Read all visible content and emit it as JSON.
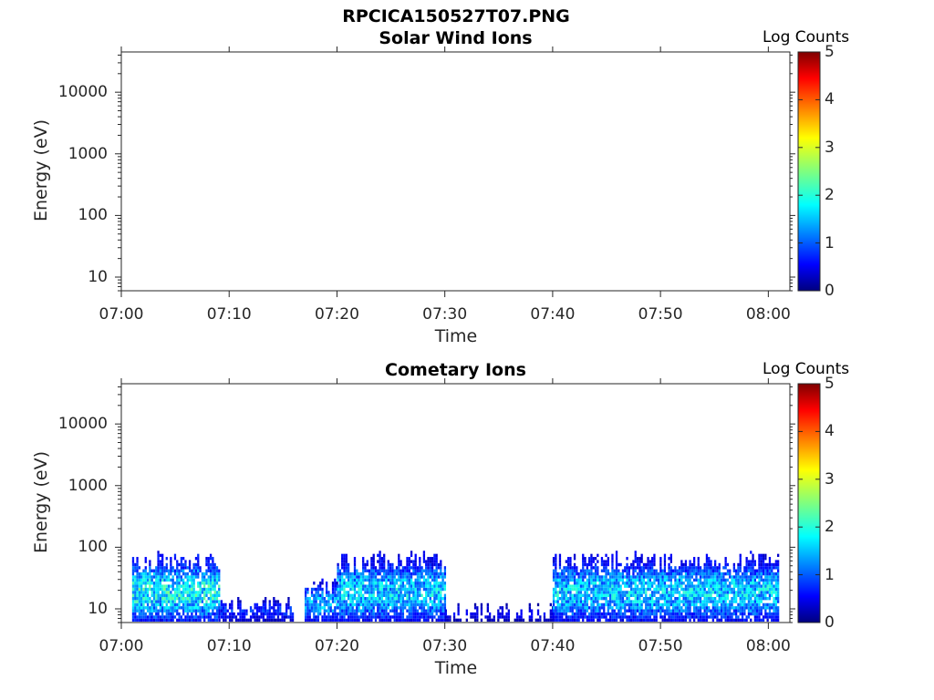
{
  "figure": {
    "title": "RPCICA150527T07.PNG"
  },
  "chart_data": [
    {
      "type": "heatmap",
      "title": "Solar Wind Ions",
      "xlabel": "Time",
      "ylabel": "Energy (eV)",
      "x_ticks": [
        "07:00",
        "07:10",
        "07:20",
        "07:30",
        "07:40",
        "07:50",
        "08:00"
      ],
      "xlim": [
        "07:00",
        "08:02"
      ],
      "y_scale": "log",
      "y_ticks": [
        "10",
        "100",
        "1000",
        "10000"
      ],
      "ylim": [
        6,
        45000
      ],
      "colorbar": {
        "label": "Log Counts",
        "range": [
          0,
          5
        ],
        "ticks": [
          "0",
          "1",
          "2",
          "3",
          "4",
          "5"
        ],
        "colormap": "jet"
      },
      "grid": false,
      "cells": []
    },
    {
      "type": "heatmap",
      "title": "Cometary Ions",
      "xlabel": "Time",
      "ylabel": "Energy (eV)",
      "x_ticks": [
        "07:00",
        "07:10",
        "07:20",
        "07:30",
        "07:40",
        "07:50",
        "08:00"
      ],
      "xlim": [
        "07:00",
        "08:02"
      ],
      "y_scale": "log",
      "y_ticks": [
        "10",
        "100",
        "1000",
        "10000"
      ],
      "ylim": [
        6,
        45000
      ],
      "colorbar": {
        "label": "Log Counts",
        "range": [
          0,
          5
        ],
        "ticks": [
          "0",
          "1",
          "2",
          "3",
          "4",
          "5"
        ],
        "colormap": "jet"
      },
      "grid": false,
      "activity_intervals": [
        {
          "start": "07:01",
          "end": "07:09",
          "emax_ev": 80,
          "peak_log_counts": 2.3
        },
        {
          "start": "07:09",
          "end": "07:16",
          "emax_ev": 15,
          "peak_log_counts": 1.0
        },
        {
          "start": "07:17",
          "end": "07:20",
          "emax_ev": 30,
          "peak_log_counts": 1.8
        },
        {
          "start": "07:20",
          "end": "07:30",
          "emax_ev": 80,
          "peak_log_counts": 2.0
        },
        {
          "start": "07:30",
          "end": "07:40",
          "emax_ev": 12,
          "peak_log_counts": 0.7
        },
        {
          "start": "07:40",
          "end": "08:01",
          "emax_ev": 80,
          "peak_log_counts": 2.0
        }
      ]
    }
  ]
}
